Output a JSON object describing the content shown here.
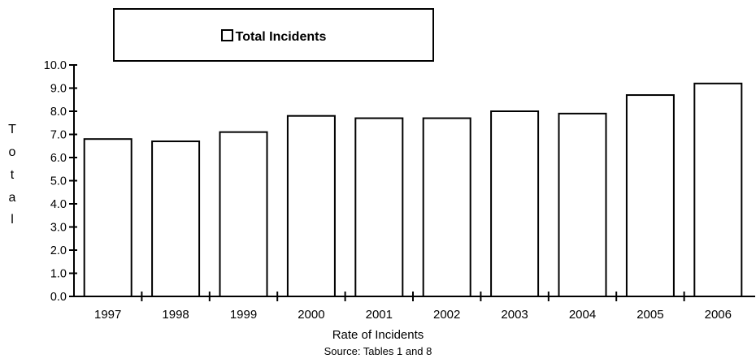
{
  "chart_data": {
    "type": "bar",
    "categories": [
      "1997",
      "1998",
      "1999",
      "2000",
      "2001",
      "2002",
      "2003",
      "2004",
      "2005",
      "2006"
    ],
    "series": [
      {
        "name": "Total Incidents",
        "values": [
          6.8,
          6.7,
          7.1,
          7.8,
          7.7,
          7.7,
          8.0,
          7.9,
          8.7,
          9.2
        ]
      }
    ],
    "ylabel": "Total",
    "ylabel_letters": [
      "T",
      "o",
      "t",
      "a",
      "l"
    ],
    "xlabel": "Rate of Incidents",
    "source": "Source: Tables 1  and 8",
    "ylim": [
      0,
      10
    ],
    "yticks": [
      "0.0",
      "1.0",
      "2.0",
      "3.0",
      "4.0",
      "5.0",
      "6.0",
      "7.0",
      "8.0",
      "9.0",
      "10.0"
    ],
    "legend_position": "top",
    "bar_fill": "#ffffff",
    "bar_stroke": "#000000",
    "grid": false
  }
}
